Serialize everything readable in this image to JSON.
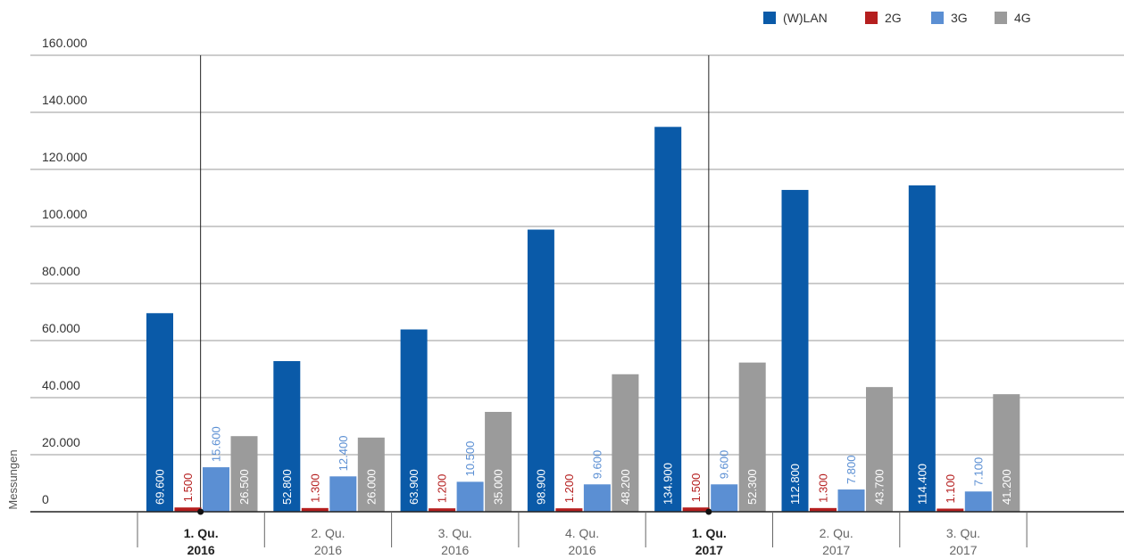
{
  "chart_data": {
    "type": "bar",
    "title": "",
    "xlabel": "",
    "ylabel": "Messungen",
    "ylim": [
      0,
      160000
    ],
    "y_ticks": [
      {
        "value": 0,
        "label": "0"
      },
      {
        "value": 20000,
        "label": "20.000"
      },
      {
        "value": 40000,
        "label": "40.000"
      },
      {
        "value": 60000,
        "label": "60.000"
      },
      {
        "value": 80000,
        "label": "80.000"
      },
      {
        "value": 100000,
        "label": "100.000"
      },
      {
        "value": 120000,
        "label": "120.000"
      },
      {
        "value": 140000,
        "label": "140.000"
      },
      {
        "value": 160000,
        "label": "160.000"
      }
    ],
    "grid": true,
    "legend_position": "top-right",
    "categories": [
      {
        "line1": "1. Qu.",
        "line2": "2016",
        "year_start": true
      },
      {
        "line1": "2. Qu.",
        "line2": "2016",
        "year_start": false
      },
      {
        "line1": "3. Qu.",
        "line2": "2016",
        "year_start": false
      },
      {
        "line1": "4. Qu.",
        "line2": "2016",
        "year_start": false
      },
      {
        "line1": "1. Qu.",
        "line2": "2017",
        "year_start": true
      },
      {
        "line1": "2. Qu.",
        "line2": "2017",
        "year_start": false
      },
      {
        "line1": "3. Qu.",
        "line2": "2017",
        "year_start": false
      }
    ],
    "series": [
      {
        "name": "(W)LAN",
        "color": "#0a5aa8",
        "label_color": "#ffffff",
        "label_inside": true,
        "values": [
          69600,
          52800,
          63900,
          98900,
          134900,
          112800,
          114400
        ],
        "labels": [
          "69.600",
          "52.800",
          "63.900",
          "98.900",
          "134.900",
          "112.800",
          "114.400"
        ]
      },
      {
        "name": "2G",
        "color": "#b51f1f",
        "label_color": "#b51f1f",
        "label_inside": false,
        "values": [
          1500,
          1300,
          1200,
          1200,
          1500,
          1300,
          1100
        ],
        "labels": [
          "1.500",
          "1.300",
          "1.200",
          "1.200",
          "1.500",
          "1.300",
          "1.100"
        ]
      },
      {
        "name": "3G",
        "color": "#5b8fd3",
        "label_color": "#5b8fd3",
        "label_inside": false,
        "values": [
          15600,
          12400,
          10500,
          9600,
          9600,
          7800,
          7100
        ],
        "labels": [
          "15.600",
          "12.400",
          "10.500",
          "9.600",
          "9.600",
          "7.800",
          "7.100"
        ]
      },
      {
        "name": "4G",
        "color": "#9b9b9b",
        "label_color": "#ffffff",
        "label_inside": true,
        "values": [
          26500,
          26000,
          35000,
          48200,
          52300,
          43700,
          41200
        ],
        "labels": [
          "26.500",
          "26.000",
          "35.000",
          "48.200",
          "52.300",
          "43.700",
          "41.200"
        ]
      }
    ]
  }
}
